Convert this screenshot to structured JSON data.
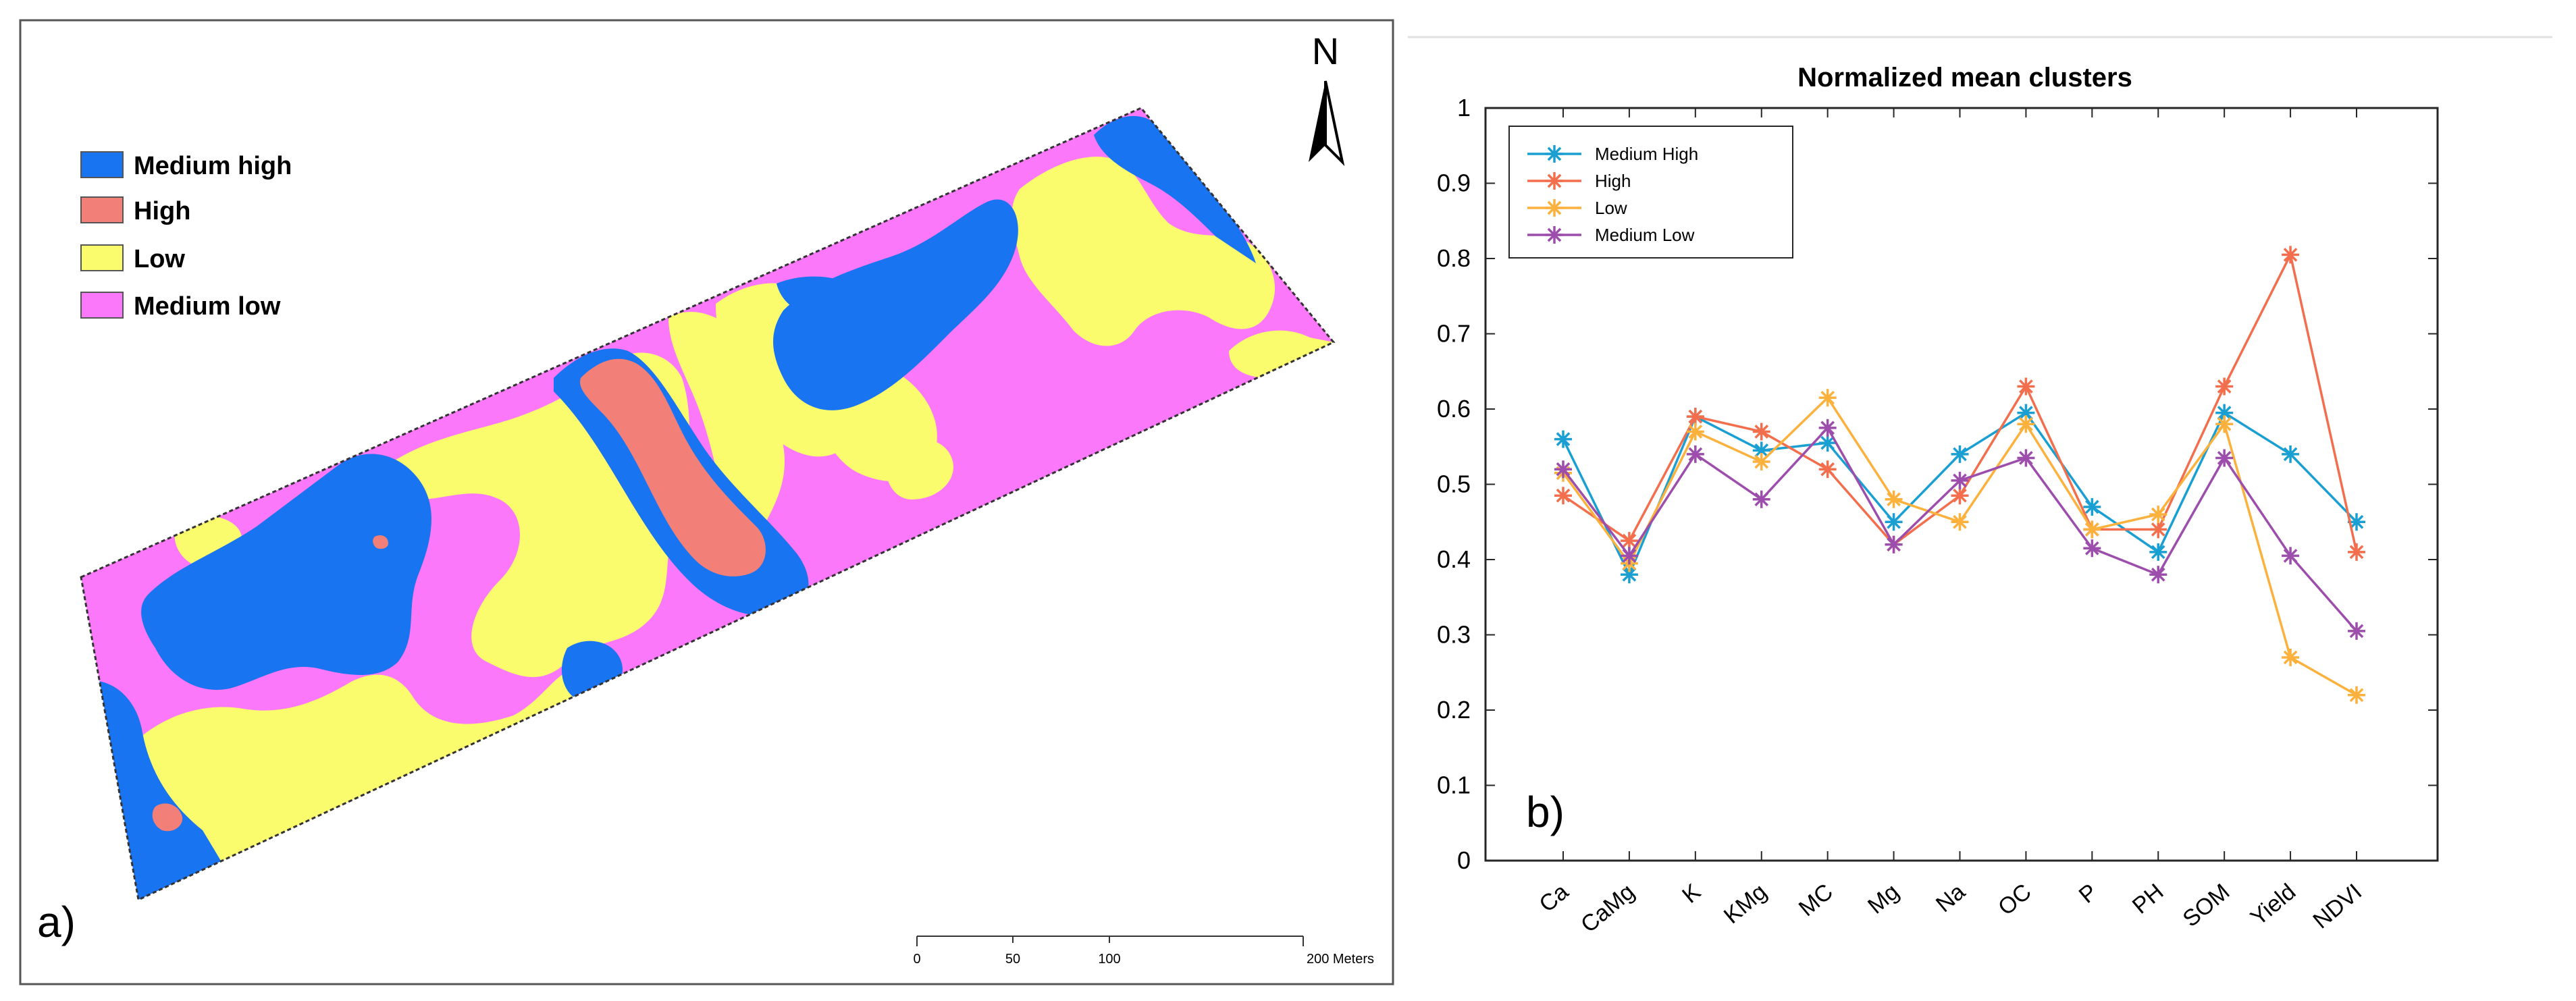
{
  "map": {
    "north_label": "N",
    "panel_label": "a)",
    "legend": [
      {
        "label": "Medium high",
        "color": "#1874f0"
      },
      {
        "label": "High",
        "color": "#f28078"
      },
      {
        "label": "Low",
        "color": "#fbfb6e"
      },
      {
        "label": "Medium low",
        "color": "#fb78fb"
      }
    ],
    "scalebar": {
      "ticks": [
        "0",
        "50",
        "100",
        "200 Meters"
      ]
    }
  },
  "chart_data": {
    "type": "line",
    "title": "Normalized mean clusters",
    "panel_label": "b)",
    "xlabel": "",
    "ylabel": "",
    "ylim": [
      0,
      1
    ],
    "yticks": [
      "0",
      "0.1",
      "0.2",
      "0.3",
      "0.4",
      "0.5",
      "0.6",
      "0.7",
      "0.8",
      "0.9",
      "1"
    ],
    "categories": [
      "Ca",
      "CaMg",
      "K",
      "KMg",
      "MC",
      "Mg",
      "Na",
      "OC",
      "P",
      "PH",
      "SOM",
      "Yield",
      "NDVI"
    ],
    "series": [
      {
        "name": "Medium High",
        "color": "#1a9fd2",
        "values": [
          0.56,
          0.38,
          0.59,
          0.545,
          0.555,
          0.45,
          0.54,
          0.595,
          0.47,
          0.41,
          0.595,
          0.54,
          0.45
        ]
      },
      {
        "name": "High",
        "color": "#f36e4c",
        "values": [
          0.485,
          0.425,
          0.59,
          0.57,
          0.52,
          0.42,
          0.485,
          0.63,
          0.44,
          0.44,
          0.63,
          0.805,
          0.41
        ]
      },
      {
        "name": "Low",
        "color": "#fbb13c",
        "values": [
          0.515,
          0.395,
          0.57,
          0.53,
          0.615,
          0.48,
          0.45,
          0.58,
          0.44,
          0.46,
          0.58,
          0.27,
          0.22
        ]
      },
      {
        "name": "Medium Low",
        "color": "#9d4dab",
        "values": [
          0.52,
          0.405,
          0.54,
          0.48,
          0.575,
          0.42,
          0.505,
          0.535,
          0.415,
          0.38,
          0.535,
          0.405,
          0.305
        ]
      }
    ]
  }
}
